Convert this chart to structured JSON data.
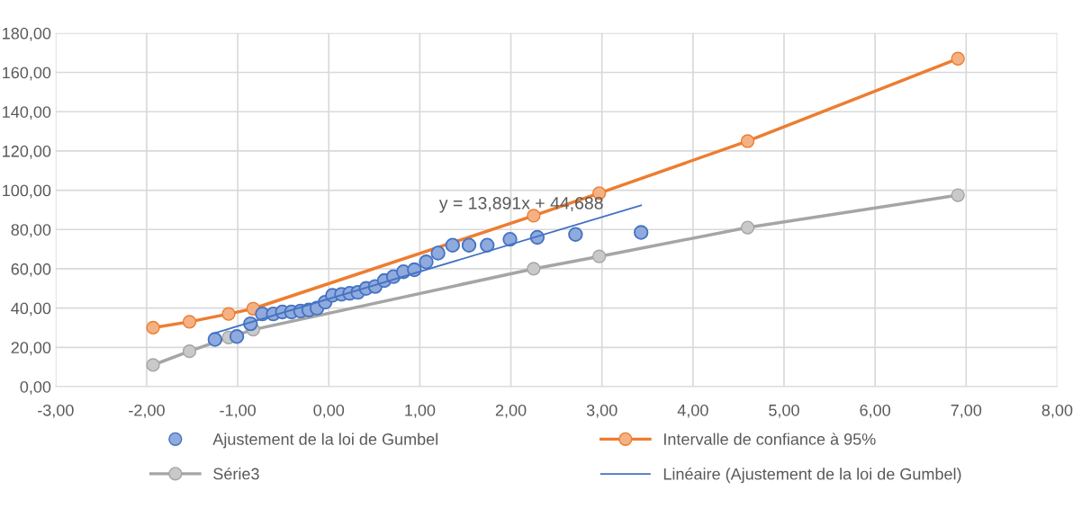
{
  "chart_data": {
    "type": "scatter",
    "xlim": [
      -3,
      8
    ],
    "ylim": [
      0,
      180
    ],
    "xticks": [
      {
        "value": -3,
        "label": "-3,00"
      },
      {
        "value": -2,
        "label": "-2,00"
      },
      {
        "value": -1,
        "label": "-1,00"
      },
      {
        "value": 0,
        "label": "0,00"
      },
      {
        "value": 1,
        "label": "1,00"
      },
      {
        "value": 2,
        "label": "2,00"
      },
      {
        "value": 3,
        "label": "3,00"
      },
      {
        "value": 4,
        "label": "4,00"
      },
      {
        "value": 5,
        "label": "5,00"
      },
      {
        "value": 6,
        "label": "6,00"
      },
      {
        "value": 7,
        "label": "7,00"
      },
      {
        "value": 8,
        "label": "8,00"
      }
    ],
    "yticks": [
      {
        "value": 0,
        "label": "0,00"
      },
      {
        "value": 20,
        "label": "20,00"
      },
      {
        "value": 40,
        "label": "40,00"
      },
      {
        "value": 60,
        "label": "60,00"
      },
      {
        "value": 80,
        "label": "80,00"
      },
      {
        "value": 100,
        "label": "100,00"
      },
      {
        "value": 120,
        "label": "120,00"
      },
      {
        "value": 140,
        "label": "140,00"
      },
      {
        "value": 160,
        "label": "160,00"
      },
      {
        "value": 180,
        "label": "180,00"
      }
    ],
    "grid": true,
    "legend": "bottom",
    "annotations": [
      "y = 13,891x + 44,688"
    ],
    "series": [
      {
        "name": "Ajustement de la loi de Gumbel",
        "marker": "circle",
        "color": "#4472c4",
        "x": [
          -1.25,
          -1.01,
          -0.86,
          -0.73,
          -0.61,
          -0.51,
          -0.41,
          -0.31,
          -0.22,
          -0.13,
          -0.04,
          0.04,
          0.14,
          0.23,
          0.32,
          0.41,
          0.51,
          0.61,
          0.71,
          0.82,
          0.94,
          1.07,
          1.2,
          1.36,
          1.54,
          1.74,
          1.99,
          2.29,
          2.71,
          3.43
        ],
        "values": [
          24,
          25.5,
          32,
          37,
          37,
          38,
          38,
          38.5,
          39,
          40,
          43,
          46.5,
          47,
          47.5,
          48,
          50,
          51,
          54,
          56,
          58.5,
          59.5,
          63.5,
          68,
          72,
          72,
          72,
          75,
          76,
          77.5,
          78.5
        ]
      },
      {
        "name": "Intervalle de confiance à 95%",
        "type": "line",
        "marker": "circle",
        "color": "#ed7d31",
        "x": [
          -1.93,
          -1.53,
          -1.1,
          -0.83,
          2.25,
          2.97,
          4.6,
          6.91
        ],
        "values": [
          30,
          33,
          37,
          39.7,
          87,
          98.5,
          125,
          167
        ]
      },
      {
        "name": "Série3",
        "type": "line",
        "marker": "circle",
        "color": "#a5a5a5",
        "x": [
          -1.93,
          -1.53,
          -1.1,
          -0.83,
          2.25,
          2.97,
          4.6,
          6.91
        ],
        "values": [
          11,
          18,
          25,
          29,
          60,
          66.3,
          81,
          97.5
        ]
      },
      {
        "name": "Linéaire (Ajustement de la loi de Gumbel)",
        "type": "line",
        "marker": "none",
        "color": "#4472c4",
        "x": [
          -1.25,
          3.43
        ],
        "values": [
          27.3,
          92.3
        ]
      }
    ]
  }
}
